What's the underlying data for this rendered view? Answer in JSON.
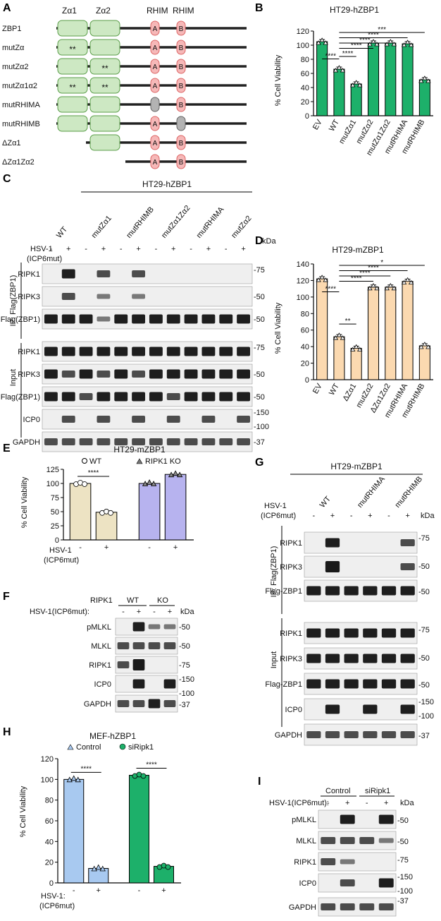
{
  "panels": {
    "A": "A",
    "B": "B",
    "C": "C",
    "D": "D",
    "E": "E",
    "F": "F",
    "G": "G",
    "H": "H",
    "I": "I"
  },
  "panelA": {
    "headers": [
      "Zα1",
      "Zα2",
      "RHIM",
      "RHIM"
    ],
    "rhimA": "A",
    "rhimB": "B",
    "mut": "**",
    "rows": [
      {
        "label": "ZBP1",
        "z1": "wt",
        "z2": "wt",
        "a": "wt",
        "b": "wt"
      },
      {
        "label": "mutZα",
        "z1": "mut",
        "z2": "wt",
        "a": "wt",
        "b": "wt"
      },
      {
        "label": "mutZα2",
        "z1": "wt",
        "z2": "mut",
        "a": "wt",
        "b": "wt"
      },
      {
        "label": "mutZα1α2",
        "z1": "mut",
        "z2": "mut",
        "a": "wt",
        "b": "wt"
      },
      {
        "label": "mutRHIMA",
        "z1": "wt",
        "z2": "wt",
        "a": "mut",
        "b": "wt"
      },
      {
        "label": "mutRHIMB",
        "z1": "wt",
        "z2": "wt",
        "a": "wt",
        "b": "mut"
      },
      {
        "label": "ΔZα1",
        "z1": "none",
        "z2": "wt",
        "a": "wt",
        "b": "wt"
      },
      {
        "label": "ΔZα1Zα2",
        "z1": "none",
        "z2": "none",
        "a": "wt",
        "b": "wt"
      }
    ]
  },
  "chartB": {
    "title": "HT29-hZBP1",
    "ylabel": "% Cell Viability",
    "yticks": [
      "0",
      "20",
      "40",
      "60",
      "80",
      "100",
      "120"
    ],
    "ylim": [
      0,
      120
    ],
    "categories": [
      "EV",
      "WT",
      "mutZα1",
      "mutZα2",
      "mutZα1Zα2",
      "mutRHIMA",
      "mutRHIMB"
    ],
    "values": [
      105,
      66,
      45,
      103,
      103,
      102,
      51
    ],
    "color": "#1db06a",
    "sig": [
      {
        "label": "****",
        "from": 0,
        "to": 1
      },
      {
        "label": "****",
        "from": 1,
        "to": 2
      },
      {
        "label": "****",
        "from": 1,
        "to": 3
      },
      {
        "label": "****",
        "from": 1,
        "to": 4
      },
      {
        "label": "****",
        "from": 1,
        "to": 5
      },
      {
        "label": "***",
        "from": 1,
        "to": 6
      }
    ]
  },
  "chartD": {
    "title": "HT29-mZBP1",
    "ylabel": "% Cell Viability",
    "yticks": [
      "0",
      "20",
      "40",
      "60",
      "80",
      "100",
      "120",
      "140"
    ],
    "ylim": [
      0,
      140
    ],
    "categories": [
      "EV",
      "WT",
      "ΔZα1",
      "mutZα2",
      "ΔZα1Zα2",
      "mutRHIMA",
      "mutRHIMB"
    ],
    "values": [
      122,
      52,
      38,
      112,
      112,
      119,
      41
    ],
    "color": "#fbd9b0",
    "sig": [
      {
        "label": "****",
        "from": 0,
        "to": 1
      },
      {
        "label": "**",
        "from": 1,
        "to": 2
      },
      {
        "label": "****",
        "from": 1,
        "to": 3
      },
      {
        "label": "****",
        "from": 1,
        "to": 4
      },
      {
        "label": "****",
        "from": 1,
        "to": 5
      },
      {
        "label": "*",
        "from": 1,
        "to": 6
      }
    ]
  },
  "chartE": {
    "title": "HT29-mZBP1",
    "legend_wt": "WT",
    "legend_ko": "RIPK1 KO",
    "ylabel": "% Cell Viability",
    "yticks": [
      "0",
      "25",
      "50",
      "75",
      "100",
      "125"
    ],
    "ylim": [
      0,
      125
    ],
    "values": [
      100,
      49,
      100,
      116
    ],
    "colors": [
      "#ede3c3",
      "#b7b3ef"
    ],
    "sig": "****",
    "xlabel": "HSV-1",
    "xlabel2": "(ICP6mut)",
    "minus": "-",
    "plus": "+"
  },
  "chartH": {
    "title": "MEF-hZBP1",
    "legend_ctrl": "Control",
    "legend_si": "siRipk1",
    "ylabel": "% Cell Viability",
    "yticks": [
      "0",
      "20",
      "40",
      "60",
      "80",
      "100",
      "120"
    ],
    "ylim": [
      0,
      120
    ],
    "values": [
      100,
      14,
      104,
      16
    ],
    "colors": [
      "#a8c9f0",
      "#1db06a"
    ],
    "sig": "****",
    "xlabel": "HSV-1:",
    "xlabel2": "(ICP6mut)",
    "minus": "-",
    "plus": "+"
  },
  "blotC": {
    "cell": "HT29-hZBP1",
    "lanes": [
      "WT",
      "mutZα1",
      "mutRHIMB",
      "mutZα1Zα2",
      "mutRHIMA",
      "mutZα2"
    ],
    "treat1": "HSV-1",
    "treat2": "(ICP6mut)",
    "kda": "kDa",
    "ip": "IP: Flag(ZBP1)",
    "input": "Input",
    "rows": [
      "RIPK1",
      "RIPK3",
      "Flag(ZBP1)",
      "RIPK1",
      "RIPK3",
      "Flag(ZBP1)",
      "ICP0",
      "GAPDH"
    ],
    "markers": [
      "-75",
      "-50",
      "-50",
      "-75",
      "-50",
      "-50",
      "-150",
      "-100",
      "-37"
    ]
  },
  "blotF": {
    "ripk1": "RIPK1",
    "wt": "WT",
    "ko": "KO",
    "treat": "HSV-1(ICP6mut):",
    "kda": "kDa",
    "rows": [
      "pMLKL",
      "MLKL",
      "RIPK1",
      "ICP0",
      "GAPDH"
    ],
    "markers": [
      "-50",
      "-50",
      "-75",
      "-150",
      "-100",
      "-37"
    ]
  },
  "blotG": {
    "cell": "HT29-mZBP1",
    "lanes": [
      "WT",
      "mutRHIMA",
      "mutRHIMB"
    ],
    "treat1": "HSV-1",
    "treat2": "(ICP6mut)",
    "kda": "kDa",
    "ip": "IP: Flag(ZBP1)",
    "input": "Input",
    "rows": [
      "RIPK1",
      "RIPK3",
      "Flag-ZBP1",
      "RIPK1",
      "RIPK3",
      "Flag-ZBP1",
      "ICP0",
      "GAPDH"
    ],
    "markers": [
      "-75",
      "-50",
      "-50",
      "-75",
      "-50",
      "-50",
      "-150",
      "-100",
      "-37"
    ]
  },
  "blotI": {
    "ctrl": "Control",
    "si": "siRipk1",
    "treat": "HSV-1(ICP6mut):",
    "kda": "kDa",
    "rows": [
      "pMLKL",
      "MLKL",
      "RIPK1",
      "ICP0",
      "GAPDH"
    ],
    "markers": [
      "-50",
      "-50",
      "-75",
      "-150",
      "-100",
      "-37"
    ]
  }
}
